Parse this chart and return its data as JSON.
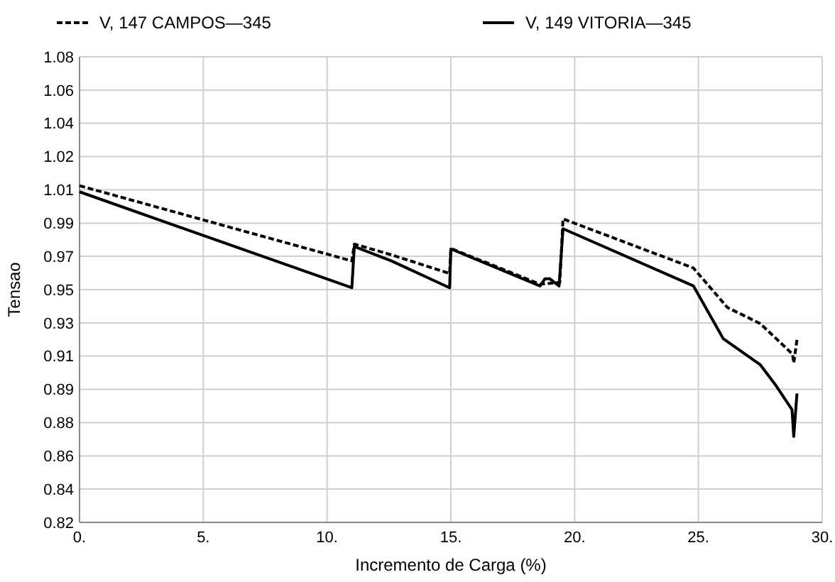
{
  "chart_data": {
    "type": "line",
    "xlabel": "Incremento de Carga (%)",
    "ylabel": "Tensao",
    "xlim": [
      0,
      30
    ],
    "xticks": [
      {
        "value": 0,
        "label": "0."
      },
      {
        "value": 5,
        "label": "5."
      },
      {
        "value": 10,
        "label": "10."
      },
      {
        "value": 15,
        "label": "15."
      },
      {
        "value": 20,
        "label": "20."
      },
      {
        "value": 25,
        "label": "25."
      },
      {
        "value": 30,
        "label": "30."
      }
    ],
    "ylim": [
      0.82,
      1.08
    ],
    "yticks": [
      {
        "value": 0.82,
        "label": "0.82"
      },
      {
        "value": 0.8386,
        "label": "0.84"
      },
      {
        "value": 0.8571,
        "label": "0.86"
      },
      {
        "value": 0.8757,
        "label": "0.88"
      },
      {
        "value": 0.8943,
        "label": "0.89"
      },
      {
        "value": 0.9129,
        "label": "0.91"
      },
      {
        "value": 0.9314,
        "label": "0.93"
      },
      {
        "value": 0.95,
        "label": "0.95"
      },
      {
        "value": 0.9686,
        "label": "0.97"
      },
      {
        "value": 0.9871,
        "label": "0.99"
      },
      {
        "value": 1.0057,
        "label": "1.01"
      },
      {
        "value": 1.0243,
        "label": "1.02"
      },
      {
        "value": 1.0429,
        "label": "1.04"
      },
      {
        "value": 1.0614,
        "label": "1.06"
      },
      {
        "value": 1.08,
        "label": "1.08"
      }
    ],
    "grid": true,
    "legend": "top",
    "series": [
      {
        "name": "V,  147 CAMPOS—345",
        "color": "#000000",
        "line_style": "dashed",
        "x": [
          0,
          11.0,
          11.1,
          12.6,
          14.95,
          15.0,
          18.6,
          19.4,
          19.53,
          24.8,
          26.17,
          27.5,
          28.8,
          28.85,
          28.98
        ],
        "values": [
          1.008,
          0.966,
          0.9754,
          0.9694,
          0.959,
          0.973,
          0.953,
          0.954,
          0.9895,
          0.962,
          0.94,
          0.931,
          0.914,
          0.909,
          0.922
        ]
      },
      {
        "name": "V,  149 VITORIA—345",
        "color": "#000000",
        "line_style": "solid",
        "x": [
          0,
          11.0,
          11.1,
          12.6,
          14.95,
          15.0,
          18.6,
          18.8,
          19.0,
          19.37,
          19.53,
          24.8,
          26.0,
          27.5,
          28.1,
          28.78,
          28.85,
          28.98
        ],
        "values": [
          1.0046,
          0.951,
          0.974,
          0.966,
          0.951,
          0.9727,
          0.952,
          0.956,
          0.956,
          0.952,
          0.984,
          0.952,
          0.9226,
          0.908,
          0.897,
          0.883,
          0.868,
          0.892
        ]
      }
    ]
  }
}
